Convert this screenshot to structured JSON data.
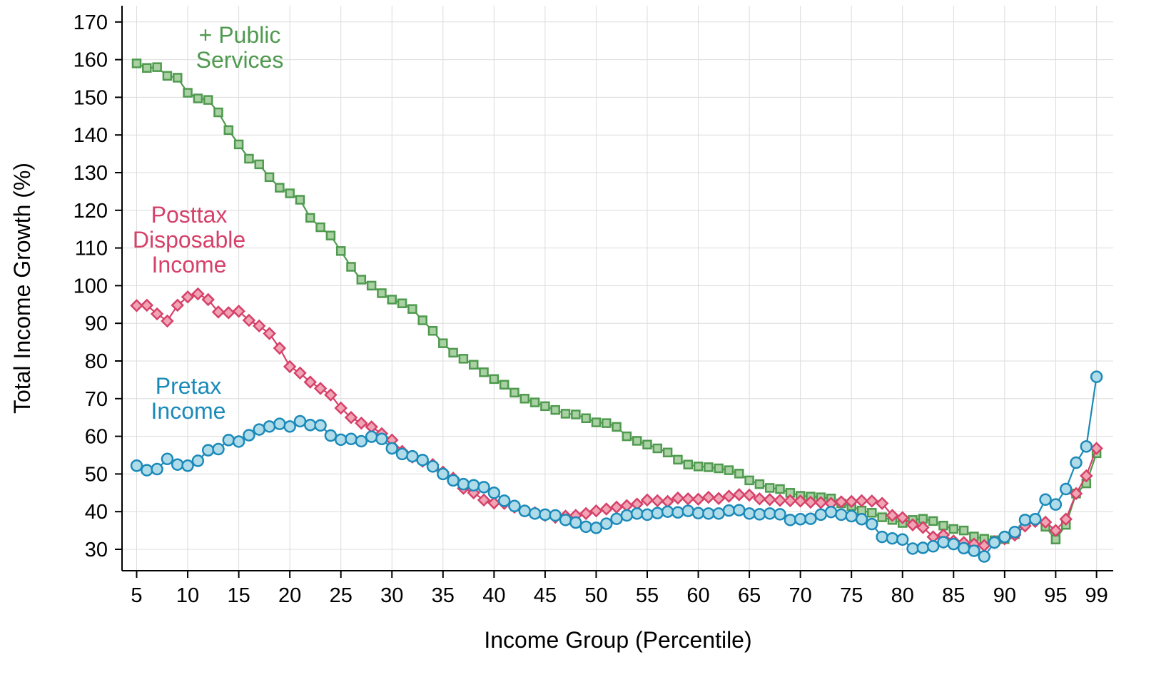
{
  "chart_data": {
    "type": "line",
    "title": "",
    "xlabel": "Income Group (Percentile)",
    "ylabel": "Total Income Growth (%)",
    "xlim": [
      4,
      100
    ],
    "ylim": [
      23,
      175
    ],
    "x_ticks": [
      5,
      10,
      15,
      20,
      25,
      30,
      35,
      40,
      45,
      50,
      55,
      60,
      65,
      70,
      75,
      80,
      85,
      90,
      95,
      99
    ],
    "y_ticks": [
      30,
      40,
      50,
      60,
      70,
      80,
      90,
      100,
      110,
      120,
      130,
      140,
      150,
      160,
      170
    ],
    "grid": true,
    "legend": "none",
    "x": [
      5,
      6,
      7,
      8,
      9,
      10,
      11,
      12,
      13,
      14,
      15,
      16,
      17,
      18,
      19,
      20,
      21,
      22,
      23,
      24,
      25,
      26,
      27,
      28,
      29,
      30,
      31,
      32,
      33,
      34,
      35,
      36,
      37,
      38,
      39,
      40,
      41,
      42,
      43,
      44,
      45,
      46,
      47,
      48,
      49,
      50,
      51,
      52,
      53,
      54,
      55,
      56,
      57,
      58,
      59,
      60,
      61,
      62,
      63,
      64,
      65,
      66,
      67,
      68,
      69,
      70,
      71,
      72,
      73,
      74,
      75,
      76,
      77,
      78,
      79,
      80,
      81,
      82,
      83,
      84,
      85,
      86,
      87,
      88,
      89,
      90,
      91,
      92,
      93,
      94,
      95,
      96,
      97,
      98,
      99
    ],
    "series": [
      {
        "name": "+ Public Services",
        "label_lines": [
          "+ Public",
          "Services"
        ],
        "color": "#4f9a4f",
        "fill": "#a9d1a3",
        "marker": "square",
        "values": [
          159,
          157.8,
          158,
          155.7,
          155.2,
          151.2,
          149.7,
          149.3,
          146,
          141.3,
          137.5,
          133.7,
          132.2,
          128.8,
          126,
          124.5,
          122.8,
          118,
          115.5,
          113.3,
          109.2,
          105,
          101.6,
          100,
          98,
          96.3,
          95.3,
          93.8,
          90.8,
          88,
          84.7,
          82.2,
          80.6,
          79,
          77,
          75.2,
          73.7,
          71.6,
          70,
          69,
          68,
          67,
          66,
          65.8,
          64.8,
          63.7,
          63.5,
          62.5,
          60,
          58.8,
          57.8,
          56.8,
          55.7,
          53.8,
          52.5,
          52,
          51.8,
          51.5,
          51,
          50.1,
          48.3,
          47.3,
          46.3,
          46,
          45,
          44.2,
          44,
          43.8,
          43.5,
          42.2,
          41.5,
          40.3,
          39.7,
          38.5,
          37.8,
          37,
          37.8,
          38.1,
          37.5,
          36.3,
          35.4,
          35,
          33.4,
          32.8,
          32.4,
          32.7,
          34,
          37.7,
          38,
          36,
          32.6,
          36.5,
          44.8,
          47.5,
          55.5
        ]
      },
      {
        "name": "Posttax Disposable Income",
        "label_lines": [
          "Posttax",
          "Disposable",
          "Income"
        ],
        "color": "#d6416a",
        "fill": "#f0a4b4",
        "marker": "diamond",
        "values": [
          94.7,
          94.8,
          92.5,
          90.6,
          94.8,
          97,
          97.8,
          96.3,
          93,
          92.8,
          93.2,
          90.8,
          89.3,
          87.3,
          83.4,
          78.5,
          76.8,
          74.4,
          72.7,
          71,
          67.5,
          65,
          63.5,
          62.5,
          60.7,
          59,
          56,
          54.5,
          53.4,
          52.5,
          50.5,
          48.9,
          46.2,
          45,
          43.1,
          42.3,
          42.2,
          41.2,
          40.2,
          39.7,
          39,
          38.5,
          38.8,
          39,
          39.5,
          40.2,
          40.7,
          41.2,
          41.6,
          42,
          43.1,
          42.9,
          42.7,
          43.6,
          43.4,
          43.3,
          43.8,
          43.5,
          44.1,
          44.5,
          44.4,
          43.4,
          43.2,
          43,
          42.9,
          42.8,
          42.5,
          42.4,
          42.2,
          42.6,
          42.7,
          42.9,
          42.8,
          42.2,
          39,
          38.4,
          36.5,
          35.8,
          33.3,
          33.8,
          32.2,
          31.8,
          31.4,
          31,
          32,
          32.8,
          33.8,
          36.2,
          37.4,
          37.2,
          35,
          38,
          44.8,
          49.5,
          56.8
        ]
      },
      {
        "name": "Pretax Income",
        "label_lines": [
          "Pretax",
          "Income"
        ],
        "color": "#1b8ab9",
        "fill": "#b0dcea",
        "marker": "circle",
        "values": [
          52.2,
          51,
          51.3,
          54,
          52.5,
          52.2,
          53.5,
          56.3,
          56.6,
          59,
          58.6,
          60.3,
          61.8,
          62.6,
          63.3,
          62.6,
          64,
          63,
          62.9,
          60.2,
          59.1,
          59.3,
          58.7,
          59.9,
          59.3,
          56.8,
          55.3,
          54.7,
          53.7,
          52,
          50,
          48.3,
          47.3,
          47,
          46.5,
          45,
          42.9,
          41.5,
          40.2,
          39.5,
          39.2,
          39,
          37.8,
          37.1,
          36,
          35.7,
          36.8,
          38.1,
          39,
          39.5,
          39.2,
          39.6,
          40,
          39.8,
          40.2,
          39.6,
          39.5,
          39.5,
          40.3,
          40.4,
          39.5,
          39.3,
          39.5,
          39.3,
          37.8,
          38,
          38.1,
          39.2,
          39.9,
          39.2,
          38.8,
          38,
          36.7,
          33.3,
          32.9,
          32.6,
          30.2,
          30.4,
          30.8,
          31.9,
          31.4,
          30.3,
          29.6,
          28.1,
          31.8,
          33.3,
          34.6,
          37.8,
          38,
          43.2,
          41.9,
          46,
          53,
          57.3,
          75.8
        ]
      }
    ]
  }
}
